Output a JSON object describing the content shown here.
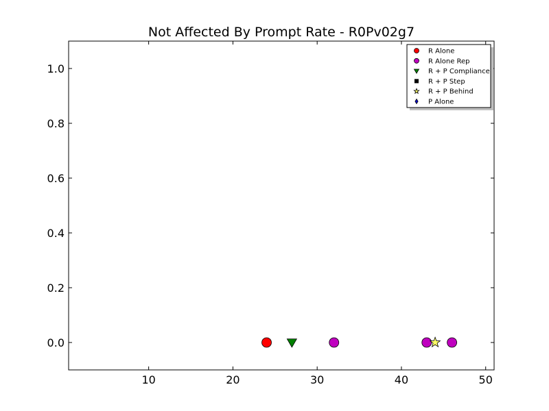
{
  "chart_data": {
    "type": "scatter",
    "title": "Not Affected By Prompt Rate - R0Pv02g7",
    "xlabel": "",
    "ylabel": "",
    "xlim": [
      0.5,
      51
    ],
    "ylim": [
      -0.1,
      1.1
    ],
    "xticks": [
      10,
      20,
      30,
      40,
      50
    ],
    "yticks": [
      0.0,
      0.2,
      0.4,
      0.6,
      0.8,
      1.0
    ],
    "xtick_labels": [
      "10",
      "20",
      "30",
      "40",
      "50"
    ],
    "ytick_labels": [
      "0.0",
      "0.2",
      "0.4",
      "0.6",
      "0.8",
      "1.0"
    ],
    "grid": false,
    "legend_position": "top-right",
    "series": [
      {
        "name": "R Alone",
        "marker": "circle",
        "color": "#ff0000",
        "points": [
          {
            "x": 24,
            "y": 0.0
          }
        ]
      },
      {
        "name": "R Alone Rep",
        "marker": "circle",
        "color": "#bf00bf",
        "points": [
          {
            "x": 32,
            "y": 0.0
          },
          {
            "x": 43,
            "y": 0.0
          },
          {
            "x": 46,
            "y": 0.0
          }
        ]
      },
      {
        "name": "R + P Compliance",
        "marker": "triangle-down",
        "color": "#008000",
        "points": [
          {
            "x": 27,
            "y": 0.0
          }
        ]
      },
      {
        "name": "R + P Step",
        "marker": "square",
        "color": "#000000",
        "points": []
      },
      {
        "name": "R + P Behind",
        "marker": "star",
        "color": "#ffff66",
        "points": [
          {
            "x": 44,
            "y": 0.0
          }
        ]
      },
      {
        "name": "P Alone",
        "marker": "diamond",
        "color": "#0000cc",
        "points": []
      }
    ]
  }
}
